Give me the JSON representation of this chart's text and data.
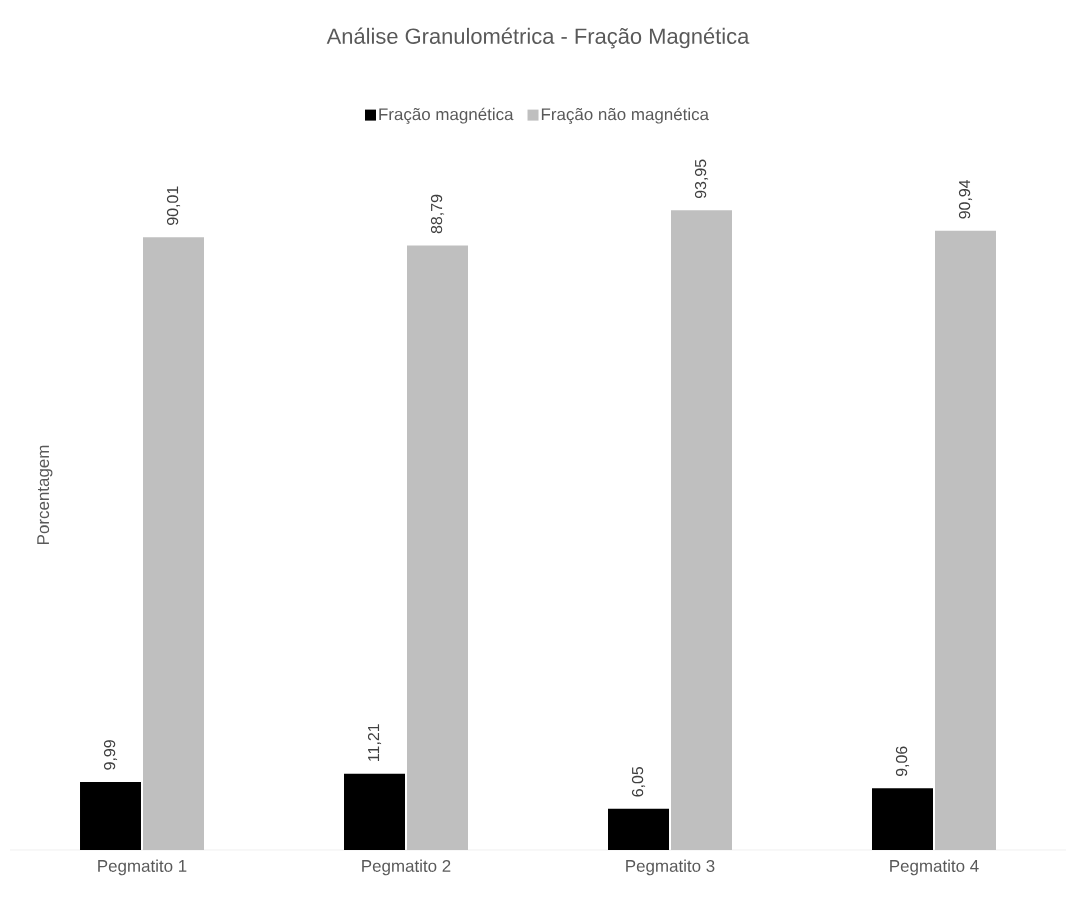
{
  "chart_data": {
    "type": "bar",
    "title": "Análise Granulométrica - Fração Magnética",
    "ylabel": "Porcentagem",
    "legend": "top",
    "categories": [
      "Pegmatito 1",
      "Pegmatito 2",
      "Pegmatito 3",
      "Pegmatito 4"
    ],
    "series": [
      {
        "name": "Fração magnética",
        "color": "#000000",
        "values": [
          9.99,
          11.21,
          6.05,
          9.06
        ],
        "value_labels": [
          "9,99",
          "11,21",
          "6,05",
          "9,06"
        ]
      },
      {
        "name": "Fração não magnética",
        "color": "#bfbfbf",
        "values": [
          90.01,
          88.79,
          93.95,
          90.94
        ],
        "value_labels": [
          "90,01",
          "88,79",
          "93,95",
          "90,94"
        ]
      }
    ]
  }
}
